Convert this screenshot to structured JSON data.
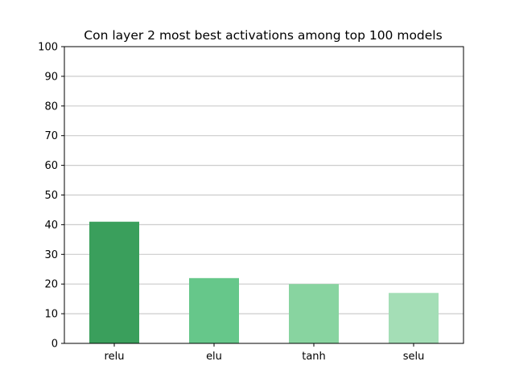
{
  "chart_data": {
    "type": "bar",
    "title": "Con layer 2 most best activations among top 100 models",
    "xlabel": "",
    "ylabel": "",
    "categories": [
      "relu",
      "elu",
      "tanh",
      "selu"
    ],
    "values": [
      41,
      22,
      20,
      17
    ],
    "colors": [
      "#3a9f5c",
      "#66c78a",
      "#88d4a0",
      "#a4deb6"
    ],
    "ylim": [
      0,
      100
    ],
    "yticks": [
      "0",
      "10",
      "20",
      "30",
      "40",
      "50",
      "60",
      "70",
      "80",
      "90",
      "100"
    ],
    "grid": "horizontal",
    "grid_color": "#cccccc",
    "legend": "none"
  }
}
